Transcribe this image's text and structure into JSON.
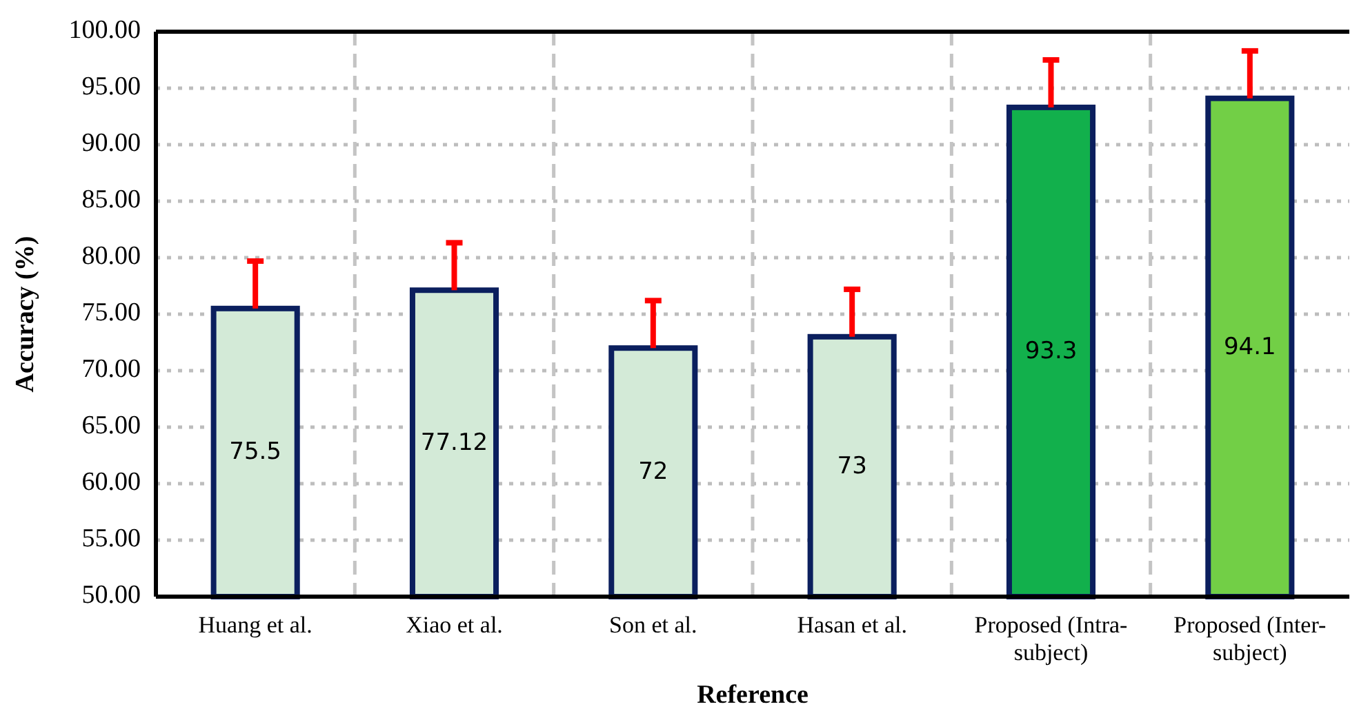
{
  "chart_data": {
    "type": "bar",
    "xlabel": "Reference",
    "ylabel": "Accuracy (%)",
    "categories": [
      "Huang et al.",
      "Xiao et al.",
      "Son et al.",
      "Hasan et al.",
      "Proposed (Intra-subject)",
      "Proposed (Inter-subject)"
    ],
    "values": [
      75.5,
      77.12,
      72,
      73,
      93.3,
      94.1
    ],
    "colors": [
      "#d3ead7",
      "#d3ead7",
      "#d3ead7",
      "#d3ead7",
      "#12b04c",
      "#72cf46"
    ],
    "errors": [
      4.2,
      4.2,
      4.2,
      4.2,
      4.2,
      4.2
    ],
    "data_labels": true,
    "ylim": [
      50,
      100
    ],
    "yticks": [
      {
        "value": 50,
        "label": "50.00"
      },
      {
        "value": 55,
        "label": "55.00"
      },
      {
        "value": 60,
        "label": "60.00"
      },
      {
        "value": 65,
        "label": "65.00"
      },
      {
        "value": 70,
        "label": "70.00"
      },
      {
        "value": 75,
        "label": "75.00"
      },
      {
        "value": 80,
        "label": "80.00"
      },
      {
        "value": 85,
        "label": "85.00"
      },
      {
        "value": 90,
        "label": "90.00"
      },
      {
        "value": 95,
        "label": "95.00"
      },
      {
        "value": 100,
        "label": "100.00"
      }
    ],
    "grid": true
  }
}
